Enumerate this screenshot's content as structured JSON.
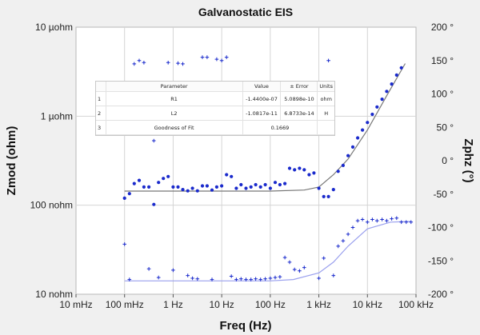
{
  "chart_data": {
    "type": "scatter",
    "title": "Galvanostatic EIS",
    "xlabel": "Freq (Hz)",
    "ylabel_left": "Zmod (ohm)",
    "ylabel_right": "Zphz (°)",
    "x_scale": "log",
    "y_left_scale": "log",
    "xlim": [
      0.01,
      100000
    ],
    "ylim_left": [
      1e-08,
      1e-05
    ],
    "ylim_right": [
      -200,
      200
    ],
    "x_ticks": [
      {
        "v": 0.01,
        "label": "10 mHz"
      },
      {
        "v": 0.1,
        "label": "100 mHz"
      },
      {
        "v": 1,
        "label": "1 Hz"
      },
      {
        "v": 10,
        "label": "10 Hz"
      },
      {
        "v": 100,
        "label": "100 Hz"
      },
      {
        "v": 1000,
        "label": "1 kHz"
      },
      {
        "v": 10000,
        "label": "10 kHz"
      },
      {
        "v": 100000,
        "label": "100 kHz"
      }
    ],
    "y_left_ticks": [
      {
        "v": 1e-05,
        "label": "10 µohm"
      },
      {
        "v": 1e-06,
        "label": "1 µohm"
      },
      {
        "v": 1e-07,
        "label": "100 nohm"
      },
      {
        "v": 1e-08,
        "label": "10 nohm"
      }
    ],
    "y_right_ticks": [
      {
        "v": 200,
        "label": "200 °"
      },
      {
        "v": 150,
        "label": "150 °"
      },
      {
        "v": 100,
        "label": "100 °"
      },
      {
        "v": 50,
        "label": "50 °"
      },
      {
        "v": 0,
        "label": "0 °"
      },
      {
        "v": -50,
        "label": "-50 °"
      },
      {
        "v": -100,
        "label": "-100 °"
      },
      {
        "v": -150,
        "label": "-150 °"
      },
      {
        "v": -200,
        "label": "-200 °"
      }
    ],
    "colors": {
      "data": "#1a2acc",
      "zmod_fit": "#777777",
      "phase_fit": "#9aa0ee",
      "grid": "#d4d4d4",
      "plot_bg": "#ffffff"
    },
    "series": [
      {
        "axis": "left",
        "marker": "dot",
        "points": [
          [
            0.1,
            1.2e-07
          ],
          [
            0.126,
            1.35e-07
          ],
          [
            0.158,
            1.75e-07
          ],
          [
            0.2,
            1.9e-07
          ],
          [
            0.25,
            1.6e-07
          ],
          [
            0.316,
            1.6e-07
          ],
          [
            0.4,
            1.02e-07
          ],
          [
            0.5,
            1.8e-07
          ],
          [
            0.63,
            2e-07
          ],
          [
            0.79,
            2.1e-07
          ],
          [
            1.0,
            1.6e-07
          ],
          [
            1.26,
            1.6e-07
          ],
          [
            1.58,
            1.5e-07
          ],
          [
            2.0,
            1.45e-07
          ],
          [
            2.5,
            1.55e-07
          ],
          [
            3.16,
            1.45e-07
          ],
          [
            4.0,
            1.65e-07
          ],
          [
            5.0,
            1.65e-07
          ],
          [
            6.3,
            1.48e-07
          ],
          [
            7.9,
            1.6e-07
          ],
          [
            10,
            1.65e-07
          ],
          [
            12.6,
            2.2e-07
          ],
          [
            15.8,
            2.1e-07
          ],
          [
            20,
            1.55e-07
          ],
          [
            25,
            1.7e-07
          ],
          [
            31.6,
            1.55e-07
          ],
          [
            40,
            1.6e-07
          ],
          [
            50,
            1.7e-07
          ],
          [
            63,
            1.6e-07
          ],
          [
            79,
            1.7e-07
          ],
          [
            100,
            1.55e-07
          ],
          [
            126,
            1.8e-07
          ],
          [
            158,
            1.7e-07
          ],
          [
            200,
            1.75e-07
          ],
          [
            250,
            2.6e-07
          ],
          [
            316,
            2.5e-07
          ],
          [
            400,
            2.6e-07
          ],
          [
            500,
            2.5e-07
          ],
          [
            630,
            2.2e-07
          ],
          [
            790,
            2.3e-07
          ],
          [
            1000,
            1.55e-07
          ],
          [
            1260,
            1.25e-07
          ],
          [
            1580,
            1.25e-07
          ],
          [
            2000,
            1.5e-07
          ],
          [
            2500,
            2.4e-07
          ],
          [
            3160,
            2.8e-07
          ],
          [
            4000,
            3.6e-07
          ],
          [
            5000,
            4.5e-07
          ],
          [
            6300,
            5.7e-07
          ],
          [
            7900,
            7e-07
          ],
          [
            10000,
            8.5e-07
          ],
          [
            12600,
            1.05e-06
          ],
          [
            15800,
            1.27e-06
          ],
          [
            20000,
            1.55e-06
          ],
          [
            25000,
            1.9e-06
          ],
          [
            31600,
            2.3e-06
          ],
          [
            40000,
            2.9e-06
          ],
          [
            50000,
            3.5e-06
          ]
        ]
      },
      {
        "axis": "right",
        "marker": "plus",
        "points": [
          [
            0.1,
            -125
          ],
          [
            0.126,
            -178
          ],
          [
            0.158,
            145
          ],
          [
            0.2,
            150
          ],
          [
            0.25,
            147
          ],
          [
            0.316,
            -162
          ],
          [
            0.4,
            30
          ],
          [
            0.5,
            -175
          ],
          [
            0.63,
            104
          ],
          [
            0.79,
            147
          ],
          [
            1.0,
            -164
          ],
          [
            1.26,
            146
          ],
          [
            1.58,
            145
          ],
          [
            2.0,
            -172
          ],
          [
            2.5,
            -176
          ],
          [
            3.16,
            -177
          ],
          [
            4.0,
            155
          ],
          [
            5.0,
            155
          ],
          [
            6.3,
            -178
          ],
          [
            7.9,
            152
          ],
          [
            10,
            150
          ],
          [
            12.6,
            155
          ],
          [
            15.8,
            -173
          ],
          [
            20,
            -178
          ],
          [
            25,
            -177
          ],
          [
            31.6,
            -178
          ],
          [
            40,
            -178
          ],
          [
            50,
            -177
          ],
          [
            63,
            -178
          ],
          [
            79,
            -177
          ],
          [
            100,
            -176
          ],
          [
            126,
            -175
          ],
          [
            158,
            -174
          ],
          [
            200,
            -145
          ],
          [
            250,
            -152
          ],
          [
            316,
            -163
          ],
          [
            400,
            -165
          ],
          [
            500,
            -160
          ],
          [
            630,
            103
          ],
          [
            790,
            110
          ],
          [
            1000,
            -176
          ],
          [
            1260,
            -146
          ],
          [
            1580,
            150
          ],
          [
            2000,
            -172
          ],
          [
            2500,
            -128
          ],
          [
            3160,
            -120
          ],
          [
            4000,
            -110
          ],
          [
            5000,
            -100
          ],
          [
            6300,
            -90
          ],
          [
            7900,
            -88
          ],
          [
            10000,
            -92
          ],
          [
            12600,
            -88
          ],
          [
            15800,
            -90
          ],
          [
            20000,
            -88
          ],
          [
            25000,
            -90
          ],
          [
            31600,
            -87
          ],
          [
            40000,
            -86
          ],
          [
            50000,
            -92
          ],
          [
            63000,
            -92
          ],
          [
            79000,
            -92
          ]
        ]
      }
    ],
    "fit_lines": [
      {
        "axis": "left",
        "name": "zmod_fit",
        "points": [
          [
            0.1,
            1.44e-07
          ],
          [
            100,
            1.44e-07
          ],
          [
            500,
            1.48e-07
          ],
          [
            1000,
            1.6e-07
          ],
          [
            2000,
            2.2e-07
          ],
          [
            4000,
            3.3e-07
          ],
          [
            10000,
            7e-07
          ],
          [
            25000,
            1.7e-06
          ],
          [
            60000,
            3.9e-06
          ]
        ]
      },
      {
        "axis": "right",
        "name": "phase_fit",
        "points": [
          [
            0.1,
            -180
          ],
          [
            100,
            -180
          ],
          [
            300,
            -178
          ],
          [
            1000,
            -168
          ],
          [
            2000,
            -152
          ],
          [
            4000,
            -128
          ],
          [
            10000,
            -102
          ],
          [
            30000,
            -92
          ],
          [
            80000,
            -91
          ]
        ]
      }
    ]
  },
  "fit_table": {
    "headers": [
      "",
      "Parameter",
      "Value",
      "± Error",
      "Units"
    ],
    "rows": [
      [
        "1",
        "R1",
        "-1.4400e-07",
        "5.0898e-10",
        "ohm"
      ],
      [
        "2",
        "L2",
        "-1.0817e-11",
        "6.8733e-14",
        "H"
      ],
      [
        "3",
        "Goodness of Fit",
        "0.1669",
        "",
        ""
      ]
    ]
  }
}
